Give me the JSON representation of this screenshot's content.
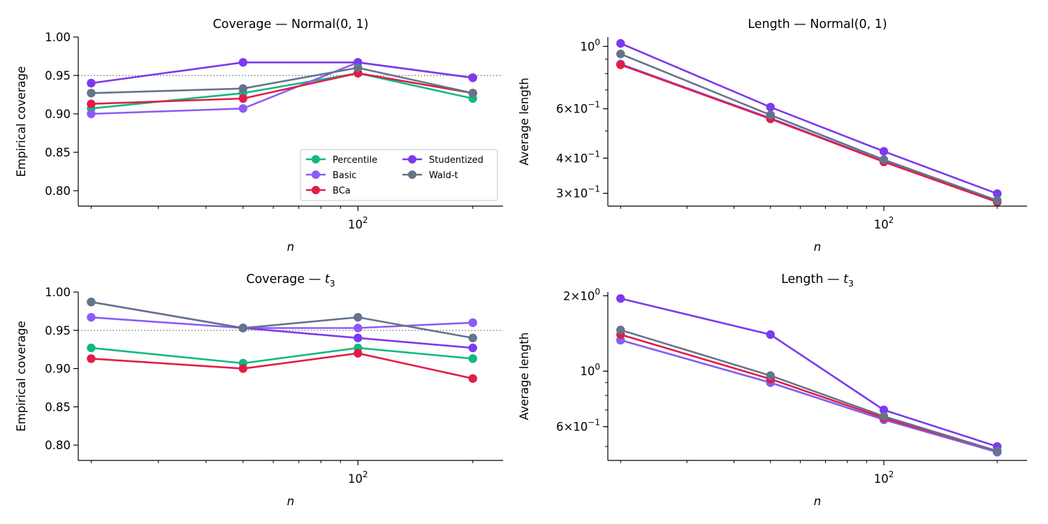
{
  "legend": {
    "series": [
      {
        "name": "Percentile",
        "color": "#10b981"
      },
      {
        "name": "Basic",
        "color": "#8b5cf6"
      },
      {
        "name": "BCa",
        "color": "#e11d48"
      },
      {
        "name": "Studentized",
        "color": "#7c3aed"
      },
      {
        "name": "Wald-t",
        "color": "#64748b"
      }
    ]
  },
  "chart_data": [
    {
      "type": "line",
      "title": "Coverage — Normal(0, 1)",
      "xlabel": "n",
      "ylabel": "Empirical coverage",
      "x": [
        20,
        50,
        100,
        200
      ],
      "xscale": "log",
      "xlim": [
        18.5,
        240
      ],
      "xticks": [
        {
          "value": 100,
          "base": "10",
          "exp": "2"
        }
      ],
      "yscale": "linear",
      "ylim": [
        0.78,
        1.0
      ],
      "yticks": [
        {
          "value": 0.8,
          "label": "0.80"
        },
        {
          "value": 0.85,
          "label": "0.85"
        },
        {
          "value": 0.9,
          "label": "0.90"
        },
        {
          "value": 0.95,
          "label": "0.95"
        },
        {
          "value": 1.0,
          "label": "1.00"
        }
      ],
      "reference_line": 0.95,
      "legend_position": "lower-right",
      "series": [
        {
          "name": "Percentile",
          "values": [
            0.907,
            0.927,
            0.953,
            0.92
          ]
        },
        {
          "name": "Basic",
          "values": [
            0.9,
            0.907,
            0.967,
            0.947
          ]
        },
        {
          "name": "BCa",
          "values": [
            0.913,
            0.92,
            0.953,
            0.927
          ]
        },
        {
          "name": "Studentized",
          "values": [
            0.94,
            0.967,
            0.967,
            0.947
          ]
        },
        {
          "name": "Wald-t",
          "values": [
            0.927,
            0.933,
            0.96,
            0.927
          ]
        }
      ]
    },
    {
      "type": "line",
      "title": "Length — Normal(0, 1)",
      "xlabel": "n",
      "ylabel": "Average length",
      "x": [
        20,
        50,
        100,
        200
      ],
      "xscale": "log",
      "xlim": [
        18.5,
        240
      ],
      "xticks": [
        {
          "value": 100,
          "base": "10",
          "exp": "2"
        }
      ],
      "yscale": "log",
      "ylim": [
        0.27,
        1.08
      ],
      "yticks": [
        {
          "value": 1.0,
          "base": "10",
          "exp": "0"
        },
        {
          "value": 0.6,
          "base": "6×10",
          "exp": "−1"
        },
        {
          "value": 0.4,
          "base": "4×10",
          "exp": "−1"
        },
        {
          "value": 0.3,
          "base": "3×10",
          "exp": "−1"
        }
      ],
      "series": [
        {
          "name": "Percentile",
          "values": [
            0.865,
            0.555,
            0.39,
            0.281
          ]
        },
        {
          "name": "Basic",
          "values": [
            0.865,
            0.555,
            0.39,
            0.281
          ]
        },
        {
          "name": "BCa",
          "values": [
            0.86,
            0.552,
            0.388,
            0.279
          ]
        },
        {
          "name": "Studentized",
          "values": [
            1.025,
            0.608,
            0.423,
            0.299
          ]
        },
        {
          "name": "Wald-t",
          "values": [
            0.94,
            0.57,
            0.395,
            0.283
          ]
        }
      ]
    },
    {
      "type": "line",
      "title": "Coverage — t",
      "title_sub": "3",
      "xlabel": "n",
      "ylabel": "Empirical coverage",
      "x": [
        20,
        50,
        100,
        200
      ],
      "xscale": "log",
      "xlim": [
        18.5,
        240
      ],
      "xticks": [
        {
          "value": 100,
          "base": "10",
          "exp": "2"
        }
      ],
      "yscale": "linear",
      "ylim": [
        0.78,
        1.0
      ],
      "yticks": [
        {
          "value": 0.8,
          "label": "0.80"
        },
        {
          "value": 0.85,
          "label": "0.85"
        },
        {
          "value": 0.9,
          "label": "0.90"
        },
        {
          "value": 0.95,
          "label": "0.95"
        },
        {
          "value": 1.0,
          "label": "1.00"
        }
      ],
      "reference_line": 0.95,
      "series": [
        {
          "name": "Percentile",
          "values": [
            0.927,
            0.907,
            0.927,
            0.913
          ]
        },
        {
          "name": "Basic",
          "values": [
            0.967,
            0.953,
            0.953,
            0.96
          ]
        },
        {
          "name": "BCa",
          "values": [
            0.913,
            0.9,
            0.92,
            0.887
          ]
        },
        {
          "name": "Studentized",
          "values": [
            0.987,
            0.953,
            0.94,
            0.927
          ]
        },
        {
          "name": "Wald-t",
          "values": [
            0.987,
            0.953,
            0.967,
            0.94
          ]
        }
      ]
    },
    {
      "type": "line",
      "title": "Length — t",
      "title_sub": "3",
      "xlabel": "n",
      "ylabel": "Average length",
      "x": [
        20,
        50,
        100,
        200
      ],
      "xscale": "log",
      "xlim": [
        18.5,
        240
      ],
      "xticks": [
        {
          "value": 100,
          "base": "10",
          "exp": "2"
        }
      ],
      "yscale": "log",
      "ylim": [
        0.44,
        2.07
      ],
      "yticks": [
        {
          "value": 2.0,
          "base": "2×10",
          "exp": "0"
        },
        {
          "value": 1.0,
          "base": "10",
          "exp": "0"
        },
        {
          "value": 0.6,
          "base": "6×10",
          "exp": "−1"
        }
      ],
      "series": [
        {
          "name": "Percentile",
          "values": [
            1.33,
            0.9,
            0.64,
            0.475
          ]
        },
        {
          "name": "Basic",
          "values": [
            1.33,
            0.9,
            0.64,
            0.475
          ]
        },
        {
          "name": "BCa",
          "values": [
            1.4,
            0.93,
            0.65,
            0.48
          ]
        },
        {
          "name": "Studentized",
          "values": [
            1.95,
            1.4,
            0.7,
            0.5
          ]
        },
        {
          "name": "Wald-t",
          "values": [
            1.46,
            0.96,
            0.66,
            0.48
          ]
        }
      ]
    }
  ]
}
